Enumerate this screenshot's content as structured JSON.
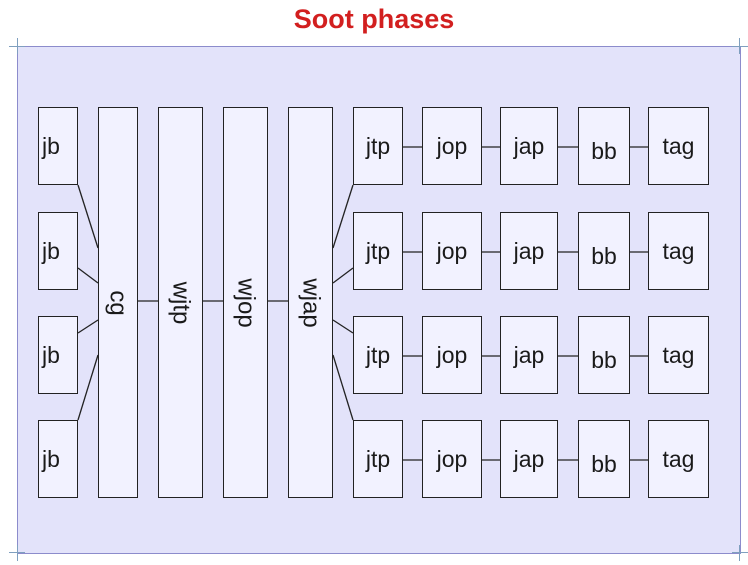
{
  "title": "Soot phases",
  "colors": {
    "title": "#d21f1f",
    "panel": "#e3e3fa",
    "box": "#f2f2ff",
    "line": "#222222"
  },
  "left_boxes": [
    "jb",
    "jb",
    "jb",
    "jb"
  ],
  "vertical_boxes": [
    "cg",
    "wjtp",
    "wjop",
    "wjap"
  ],
  "rows": [
    [
      "jtp",
      "jop",
      "jap",
      "bb",
      "tag"
    ],
    [
      "jtp",
      "jop",
      "jap",
      "bb",
      "tag"
    ],
    [
      "jtp",
      "jop",
      "jap",
      "bb",
      "tag"
    ],
    [
      "jtp",
      "jop",
      "jap",
      "bb",
      "tag"
    ]
  ]
}
